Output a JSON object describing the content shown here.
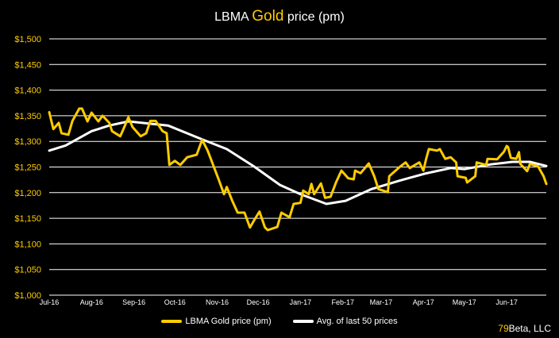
{
  "title": {
    "part1": "LBMA ",
    "part2": "Gold",
    "part3": " price (pm)"
  },
  "credit": {
    "number": "79",
    "name": "Beta, LLC"
  },
  "colors": {
    "gold": "#FFCC00",
    "avg": "#FFFFFF",
    "background": "#000000",
    "grid": "#FFFFFF"
  },
  "chart_data": {
    "type": "line",
    "title": "LBMA Gold price (pm)",
    "xlim": [
      "2016-07-01",
      "2017-06-30"
    ],
    "ylim": [
      1000,
      1500
    ],
    "grid": true,
    "legend_position": "bottom",
    "x_ticks": [
      {
        "date": "2016-07-01",
        "label": "Jul-16"
      },
      {
        "date": "2016-08-01",
        "label": "Aug-16"
      },
      {
        "date": "2016-09-01",
        "label": "Sep-16"
      },
      {
        "date": "2016-10-01",
        "label": "Oct-16"
      },
      {
        "date": "2016-11-01",
        "label": "Nov-16"
      },
      {
        "date": "2016-12-01",
        "label": "Dec-16"
      },
      {
        "date": "2017-01-01",
        "label": "Jan-17"
      },
      {
        "date": "2017-02-01",
        "label": "Feb-17"
      },
      {
        "date": "2017-03-01",
        "label": "Mar-17"
      },
      {
        "date": "2017-04-01",
        "label": "Apr-17"
      },
      {
        "date": "2017-05-01",
        "label": "May-17"
      },
      {
        "date": "2017-06-01",
        "label": "Jun-17"
      }
    ],
    "y_ticks": [
      {
        "value": 1000,
        "label": "$1,000"
      },
      {
        "value": 1050,
        "label": "$1,050"
      },
      {
        "value": 1100,
        "label": "$1,100"
      },
      {
        "value": 1150,
        "label": "$1,150"
      },
      {
        "value": 1200,
        "label": "$1,200"
      },
      {
        "value": 1250,
        "label": "$1,250"
      },
      {
        "value": 1300,
        "label": "$1,300"
      },
      {
        "value": 1350,
        "label": "$1,350"
      },
      {
        "value": 1400,
        "label": "$1,400"
      },
      {
        "value": 1450,
        "label": "$1,450"
      },
      {
        "value": 1500,
        "label": "$1,500"
      }
    ],
    "series": [
      {
        "name": "LBMA Gold price (pm)",
        "color": "#FFCC00",
        "points": [
          [
            "2016-07-01",
            1357
          ],
          [
            "2016-07-04",
            1324
          ],
          [
            "2016-07-08",
            1336
          ],
          [
            "2016-07-10",
            1316
          ],
          [
            "2016-07-15",
            1313
          ],
          [
            "2016-07-18",
            1340
          ],
          [
            "2016-07-23",
            1364
          ],
          [
            "2016-07-25",
            1364
          ],
          [
            "2016-07-29",
            1339
          ],
          [
            "2016-08-01",
            1356
          ],
          [
            "2016-08-06",
            1339
          ],
          [
            "2016-08-09",
            1350
          ],
          [
            "2016-08-14",
            1336
          ],
          [
            "2016-08-16",
            1320
          ],
          [
            "2016-08-22",
            1310
          ],
          [
            "2016-08-24",
            1322
          ],
          [
            "2016-08-28",
            1347
          ],
          [
            "2016-08-31",
            1328
          ],
          [
            "2016-09-06",
            1310
          ],
          [
            "2016-09-10",
            1316
          ],
          [
            "2016-09-13",
            1340
          ],
          [
            "2016-09-17",
            1340
          ],
          [
            "2016-09-22",
            1320
          ],
          [
            "2016-09-25",
            1316
          ],
          [
            "2016-09-27",
            1254
          ],
          [
            "2016-10-01",
            1262
          ],
          [
            "2016-10-05",
            1254
          ],
          [
            "2016-10-10",
            1269
          ],
          [
            "2016-10-17",
            1274
          ],
          [
            "2016-10-21",
            1303
          ],
          [
            "2016-10-25",
            1282
          ],
          [
            "2016-11-02",
            1226
          ],
          [
            "2016-11-06",
            1197
          ],
          [
            "2016-11-08",
            1211
          ],
          [
            "2016-11-12",
            1184
          ],
          [
            "2016-11-16",
            1161
          ],
          [
            "2016-11-21",
            1161
          ],
          [
            "2016-11-25",
            1132
          ],
          [
            "2016-11-28",
            1146
          ],
          [
            "2016-12-02",
            1163
          ],
          [
            "2016-12-06",
            1132
          ],
          [
            "2016-12-08",
            1127
          ],
          [
            "2016-12-15",
            1133
          ],
          [
            "2016-12-18",
            1161
          ],
          [
            "2016-12-24",
            1152
          ],
          [
            "2016-12-27",
            1178
          ],
          [
            "2017-01-01",
            1180
          ],
          [
            "2017-01-03",
            1204
          ],
          [
            "2017-01-07",
            1197
          ],
          [
            "2017-01-09",
            1217
          ],
          [
            "2017-01-11",
            1197
          ],
          [
            "2017-01-16",
            1218
          ],
          [
            "2017-01-19",
            1190
          ],
          [
            "2017-01-23",
            1192
          ],
          [
            "2017-01-27",
            1220
          ],
          [
            "2017-01-31",
            1243
          ],
          [
            "2017-02-05",
            1228
          ],
          [
            "2017-02-09",
            1226
          ],
          [
            "2017-02-10",
            1243
          ],
          [
            "2017-02-14",
            1238
          ],
          [
            "2017-02-20",
            1257
          ],
          [
            "2017-02-24",
            1232
          ],
          [
            "2017-02-27",
            1207
          ],
          [
            "2017-03-06",
            1201
          ],
          [
            "2017-03-07",
            1232
          ],
          [
            "2017-03-15",
            1251
          ],
          [
            "2017-03-19",
            1259
          ],
          [
            "2017-03-22",
            1248
          ],
          [
            "2017-03-29",
            1259
          ],
          [
            "2017-04-01",
            1243
          ],
          [
            "2017-04-03",
            1266
          ],
          [
            "2017-04-05",
            1285
          ],
          [
            "2017-04-11",
            1282
          ],
          [
            "2017-04-13",
            1285
          ],
          [
            "2017-04-17",
            1266
          ],
          [
            "2017-04-21",
            1269
          ],
          [
            "2017-04-25",
            1259
          ],
          [
            "2017-04-26",
            1232
          ],
          [
            "2017-05-02",
            1229
          ],
          [
            "2017-05-03",
            1220
          ],
          [
            "2017-05-09",
            1232
          ],
          [
            "2017-05-10",
            1259
          ],
          [
            "2017-05-17",
            1254
          ],
          [
            "2017-05-18",
            1266
          ],
          [
            "2017-05-25",
            1265
          ],
          [
            "2017-05-30",
            1280
          ],
          [
            "2017-06-01",
            1291
          ],
          [
            "2017-06-02",
            1289
          ],
          [
            "2017-06-04",
            1268
          ],
          [
            "2017-06-08",
            1266
          ],
          [
            "2017-06-10",
            1279
          ],
          [
            "2017-06-11",
            1256
          ],
          [
            "2017-06-16",
            1242
          ],
          [
            "2017-06-18",
            1256
          ],
          [
            "2017-06-24",
            1251
          ],
          [
            "2017-06-28",
            1232
          ],
          [
            "2017-06-30",
            1217
          ]
        ]
      },
      {
        "name": "Avg. of last 50 prices",
        "color": "#FFFFFF",
        "points": [
          [
            "2016-07-01",
            1282
          ],
          [
            "2016-07-13",
            1292
          ],
          [
            "2016-08-01",
            1320
          ],
          [
            "2016-08-14",
            1331
          ],
          [
            "2016-08-28",
            1339
          ],
          [
            "2016-09-26",
            1331
          ],
          [
            "2016-10-20",
            1305
          ],
          [
            "2016-11-08",
            1285
          ],
          [
            "2016-11-28",
            1251
          ],
          [
            "2016-12-17",
            1215
          ],
          [
            "2017-01-01",
            1197
          ],
          [
            "2017-01-20",
            1178
          ],
          [
            "2017-02-03",
            1184
          ],
          [
            "2017-02-22",
            1207
          ],
          [
            "2017-03-14",
            1223
          ],
          [
            "2017-04-02",
            1237
          ],
          [
            "2017-04-21",
            1248
          ],
          [
            "2017-05-01",
            1246
          ],
          [
            "2017-05-20",
            1255
          ],
          [
            "2017-06-05",
            1260
          ],
          [
            "2017-06-18",
            1260
          ],
          [
            "2017-06-30",
            1252
          ]
        ]
      }
    ]
  }
}
